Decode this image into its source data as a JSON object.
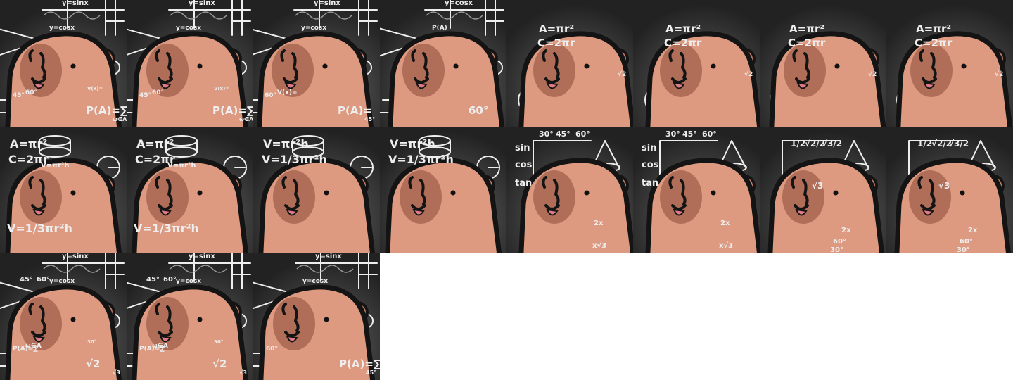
{
  "sprite_sheet": {
    "background_color": "#ffffff",
    "frame_colors": {
      "board": "#222222",
      "body": "#dd9a80",
      "cheek": "#b06e59",
      "chalk": "#eeeeee",
      "tongue": "#e07a86",
      "outline": "#141414"
    },
    "frames": [
      {
        "scene": "graphs-probability",
        "labels": [
          "y=sinx",
          "y=cosx",
          "P(A)=∑",
          "ω∈A",
          "45°",
          "60°",
          "V(x)="
        ]
      },
      {
        "scene": "graphs-probability",
        "labels": [
          "y=sinx",
          "y=cosx",
          "P(A)=∑",
          "ω∈A",
          "45°",
          "60°",
          "V(x)="
        ]
      },
      {
        "scene": "graphs-probability",
        "labels": [
          "y=sinx",
          "y=cosx",
          "P(A)=",
          "45°",
          "60°",
          "V(x)="
        ]
      },
      {
        "scene": "graphs-probability",
        "labels": [
          "y=cosx",
          "P(A)",
          "60°"
        ]
      },
      {
        "scene": "circle-formulas",
        "labels": [
          "A=πr²",
          "C=2πr",
          "√2"
        ]
      },
      {
        "scene": "circle-formulas",
        "labels": [
          "A=πr²",
          "C=2πr",
          "√2"
        ]
      },
      {
        "scene": "circle-formulas",
        "labels": [
          "A=πr²",
          "C=2πr",
          "√2"
        ]
      },
      {
        "scene": "circle-formulas",
        "labels": [
          "A=πr²",
          "C=2πr",
          "√2"
        ]
      },
      {
        "scene": "volume-formulas",
        "labels": [
          "A=πr²",
          "C=2πr",
          "V=πr²h",
          "V=1/3πr²h"
        ]
      },
      {
        "scene": "volume-formulas",
        "labels": [
          "A=πr²",
          "C=2πr",
          "V=πr²h",
          "V=1/3πr²h"
        ]
      },
      {
        "scene": "volume-formulas",
        "labels": [
          "V=πr²h",
          "V=1/3πr²h"
        ]
      },
      {
        "scene": "volume-formulas",
        "labels": [
          "V=πr²h",
          "V=1/3πr²h"
        ]
      },
      {
        "scene": "trig-table",
        "labels": [
          "30°",
          "45°",
          "60°",
          "sin",
          "cos",
          "tan",
          "2x",
          "x√3"
        ]
      },
      {
        "scene": "trig-table",
        "labels": [
          "30°",
          "45°",
          "60°",
          "sin",
          "cos",
          "tan",
          "2x",
          "x√3"
        ]
      },
      {
        "scene": "trig-table",
        "labels": [
          "1/2",
          "√2/2",
          "√3/2",
          "√3",
          "2x",
          "60°",
          "30°"
        ]
      },
      {
        "scene": "trig-table",
        "labels": [
          "1/2",
          "√2/2",
          "√3/2",
          "√3",
          "2x",
          "60°",
          "30°"
        ]
      },
      {
        "scene": "graphs-probability",
        "labels": [
          "y=sinx",
          "y=cosx",
          "√2",
          "√3",
          "P(A)=∑",
          "ω∈A",
          "30°",
          "45°",
          "60°"
        ]
      },
      {
        "scene": "graphs-probability",
        "labels": [
          "y=sinx",
          "y=cosx",
          "√2",
          "√3",
          "P(A)=∑",
          "ω∈A",
          "30°",
          "45°",
          "60°"
        ]
      },
      {
        "scene": "graphs-probability",
        "labels": [
          "y=sinx",
          "y=cosx",
          "P(A)=∑",
          "45°",
          "60°"
        ]
      }
    ]
  }
}
